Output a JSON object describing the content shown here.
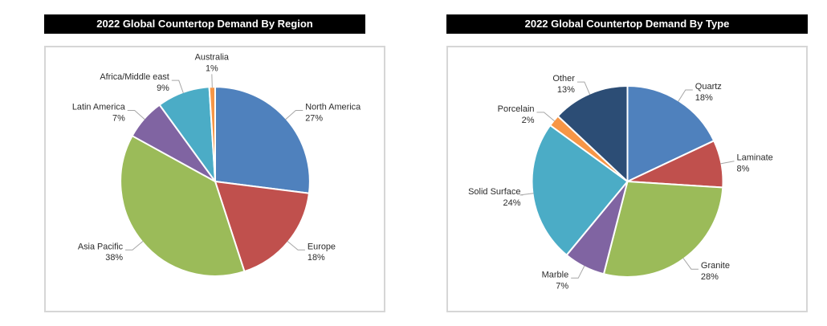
{
  "chart_data": [
    {
      "type": "pie",
      "title": "2022 Global Countertop Demand By Region",
      "legend": "none",
      "labels": "outside with leader lines, name and percent",
      "direction": "clockwise",
      "start_angle_deg": 0,
      "slices": [
        {
          "label": "North America",
          "value": 27,
          "color": "#4F81BD"
        },
        {
          "label": "Europe",
          "value": 18,
          "color": "#C0504D"
        },
        {
          "label": "Asia Pacific",
          "value": 38,
          "color": "#9BBB59"
        },
        {
          "label": "Latin America",
          "value": 7,
          "color": "#8064A2"
        },
        {
          "label": "Africa/Middle east",
          "value": 9,
          "color": "#4BACC6"
        },
        {
          "label": "Australia",
          "value": 1,
          "color": "#F79646"
        }
      ]
    },
    {
      "type": "pie",
      "title": "2022 Global Countertop Demand By Type",
      "legend": "none",
      "labels": "outside with leader lines, name and percent",
      "direction": "clockwise",
      "start_angle_deg": 0,
      "slices": [
        {
          "label": "Quartz",
          "value": 18,
          "color": "#4F81BD"
        },
        {
          "label": "Laminate",
          "value": 8,
          "color": "#C0504D"
        },
        {
          "label": "Granite",
          "value": 28,
          "color": "#9BBB59"
        },
        {
          "label": "Marble",
          "value": 7,
          "color": "#8064A2"
        },
        {
          "label": "Solid Surface",
          "value": 24,
          "color": "#4BACC6"
        },
        {
          "label": "Porcelain",
          "value": 2,
          "color": "#F79646"
        },
        {
          "label": "Other",
          "value": 13,
          "color": "#2C4D75"
        }
      ]
    }
  ],
  "style": {
    "title_bar_background": "#000000",
    "title_text_color": "#ffffff",
    "chart_border_color": "#d6d6d6",
    "leader_line_color": "#a6a6a6",
    "label_text_color": "#2b2b2b"
  }
}
